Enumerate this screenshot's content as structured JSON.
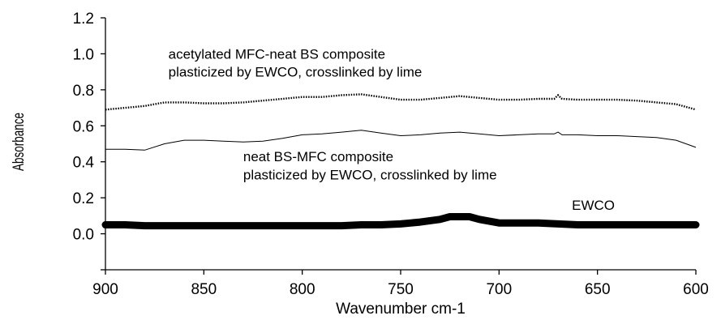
{
  "chart_data": {
    "type": "line",
    "title": "",
    "xlabel": "Wavenumber cm-1",
    "ylabel": "Absorbance",
    "xlim": [
      900,
      600
    ],
    "ylim": [
      -0.2,
      1.2
    ],
    "x_reversed": true,
    "grid": false,
    "x_ticks": [
      "900",
      "850",
      "800",
      "750",
      "700",
      "650",
      "600"
    ],
    "y_ticks": [
      "1.2",
      "1.0",
      "0.8",
      "0.6",
      "0.4",
      "0.2",
      "0.0"
    ],
    "series": [
      {
        "name": "acetylated MFC-neat BS composite plasticized by EWCO, crosslinked by lime",
        "style": "dotted-thick",
        "points": [
          [
            900,
            0.69
          ],
          [
            890,
            0.7
          ],
          [
            880,
            0.71
          ],
          [
            870,
            0.73
          ],
          [
            860,
            0.73
          ],
          [
            850,
            0.725
          ],
          [
            840,
            0.725
          ],
          [
            830,
            0.73
          ],
          [
            820,
            0.74
          ],
          [
            810,
            0.75
          ],
          [
            800,
            0.76
          ],
          [
            790,
            0.76
          ],
          [
            780,
            0.77
          ],
          [
            770,
            0.775
          ],
          [
            760,
            0.76
          ],
          [
            750,
            0.745
          ],
          [
            740,
            0.745
          ],
          [
            730,
            0.755
          ],
          [
            720,
            0.765
          ],
          [
            710,
            0.755
          ],
          [
            700,
            0.745
          ],
          [
            690,
            0.745
          ],
          [
            680,
            0.75
          ],
          [
            672,
            0.75
          ],
          [
            670,
            0.77
          ],
          [
            668,
            0.75
          ],
          [
            660,
            0.745
          ],
          [
            650,
            0.745
          ],
          [
            640,
            0.745
          ],
          [
            630,
            0.74
          ],
          [
            620,
            0.73
          ],
          [
            610,
            0.72
          ],
          [
            600,
            0.69
          ]
        ]
      },
      {
        "name": "neat BS-MFC composite plasticized by EWCO, crosslinked by lime",
        "style": "thin",
        "points": [
          [
            900,
            0.47
          ],
          [
            890,
            0.47
          ],
          [
            880,
            0.465
          ],
          [
            870,
            0.5
          ],
          [
            860,
            0.52
          ],
          [
            850,
            0.52
          ],
          [
            840,
            0.515
          ],
          [
            830,
            0.51
          ],
          [
            820,
            0.515
          ],
          [
            810,
            0.53
          ],
          [
            800,
            0.55
          ],
          [
            790,
            0.555
          ],
          [
            780,
            0.565
          ],
          [
            770,
            0.575
          ],
          [
            760,
            0.56
          ],
          [
            750,
            0.545
          ],
          [
            740,
            0.55
          ],
          [
            730,
            0.56
          ],
          [
            720,
            0.565
          ],
          [
            710,
            0.555
          ],
          [
            700,
            0.545
          ],
          [
            690,
            0.55
          ],
          [
            680,
            0.555
          ],
          [
            672,
            0.555
          ],
          [
            670,
            0.565
          ],
          [
            668,
            0.55
          ],
          [
            660,
            0.55
          ],
          [
            650,
            0.545
          ],
          [
            640,
            0.545
          ],
          [
            630,
            0.54
          ],
          [
            620,
            0.535
          ],
          [
            610,
            0.52
          ],
          [
            600,
            0.48
          ]
        ]
      },
      {
        "name": "EWCO",
        "style": "very-thick",
        "points": [
          [
            900,
            0.05
          ],
          [
            890,
            0.05
          ],
          [
            880,
            0.045
          ],
          [
            870,
            0.045
          ],
          [
            860,
            0.045
          ],
          [
            850,
            0.045
          ],
          [
            840,
            0.045
          ],
          [
            830,
            0.045
          ],
          [
            820,
            0.045
          ],
          [
            810,
            0.045
          ],
          [
            800,
            0.045
          ],
          [
            790,
            0.045
          ],
          [
            780,
            0.045
          ],
          [
            770,
            0.05
          ],
          [
            760,
            0.05
          ],
          [
            750,
            0.055
          ],
          [
            740,
            0.065
          ],
          [
            730,
            0.08
          ],
          [
            725,
            0.095
          ],
          [
            715,
            0.095
          ],
          [
            710,
            0.08
          ],
          [
            700,
            0.06
          ],
          [
            690,
            0.06
          ],
          [
            680,
            0.06
          ],
          [
            670,
            0.055
          ],
          [
            660,
            0.05
          ],
          [
            650,
            0.05
          ],
          [
            640,
            0.05
          ],
          [
            630,
            0.05
          ],
          [
            620,
            0.05
          ],
          [
            610,
            0.05
          ],
          [
            600,
            0.05
          ]
        ]
      }
    ],
    "annotations": [
      {
        "lines": [
          "acetylated MFC-neat BS composite",
          "plasticized by EWCO, crosslinked by lime"
        ],
        "x": 868,
        "y": 1.0,
        "line_gap": 0.1
      },
      {
        "lines": [
          "neat BS-MFC composite",
          "plasticized by EWCO, crosslinked by lime"
        ],
        "x": 830,
        "y": 0.43,
        "line_gap": 0.1
      },
      {
        "lines": [
          "EWCO"
        ],
        "x": 663,
        "y": 0.16,
        "line_gap": 0.1
      }
    ]
  }
}
